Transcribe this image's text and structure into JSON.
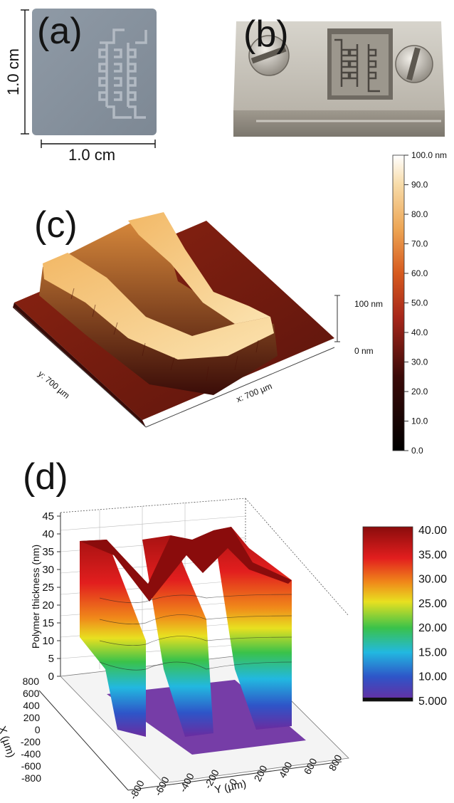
{
  "panel_a": {
    "letter": "(a)",
    "height_label": "1.0 cm",
    "width_label": "1.0 cm"
  },
  "panel_b": {
    "letter": "(b)"
  },
  "panel_c": {
    "letter": "(c)",
    "colorbar_ticks": [
      "100.0 nm",
      "90.0",
      "80.0",
      "70.0",
      "60.0",
      "50.0",
      "40.0",
      "30.0",
      "20.0",
      "10.0",
      "0.0"
    ],
    "z_top_label": "100 nm",
    "z_bottom_label": "0 nm",
    "y_axis_label": "y: 700 µm",
    "x_axis_label": "x: 700 µm"
  },
  "panel_d": {
    "letter": "(d)",
    "z_axis_label": "Polymer thickness (nm)",
    "z_ticks": [
      "0",
      "5",
      "10",
      "15",
      "20",
      "25",
      "30",
      "35",
      "40",
      "45"
    ],
    "x_axis_label": "X (µm)",
    "x_ticks": [
      "800",
      "600",
      "400",
      "200",
      "0",
      "-200",
      "-400",
      "-600",
      "-800"
    ],
    "y_axis_label": "Y (µm)",
    "y_ticks": [
      "-800",
      "-600",
      "-400",
      "-200",
      "0",
      "200",
      "400",
      "600",
      "800"
    ],
    "colorbar_ticks": [
      "40.00",
      "35.00",
      "30.00",
      "25.00",
      "20.00",
      "15.00",
      "10.00",
      "5.000"
    ]
  },
  "colors": {
    "afm_low": "#1a0606",
    "afm_mid": "#b23018",
    "afm_high": "#f7d79a",
    "rainbow": [
      "#6a2ca0",
      "#2e55c8",
      "#22b8e0",
      "#3ac24a",
      "#e8e020",
      "#f08a1a",
      "#e21e1e",
      "#8a0c0c"
    ]
  }
}
